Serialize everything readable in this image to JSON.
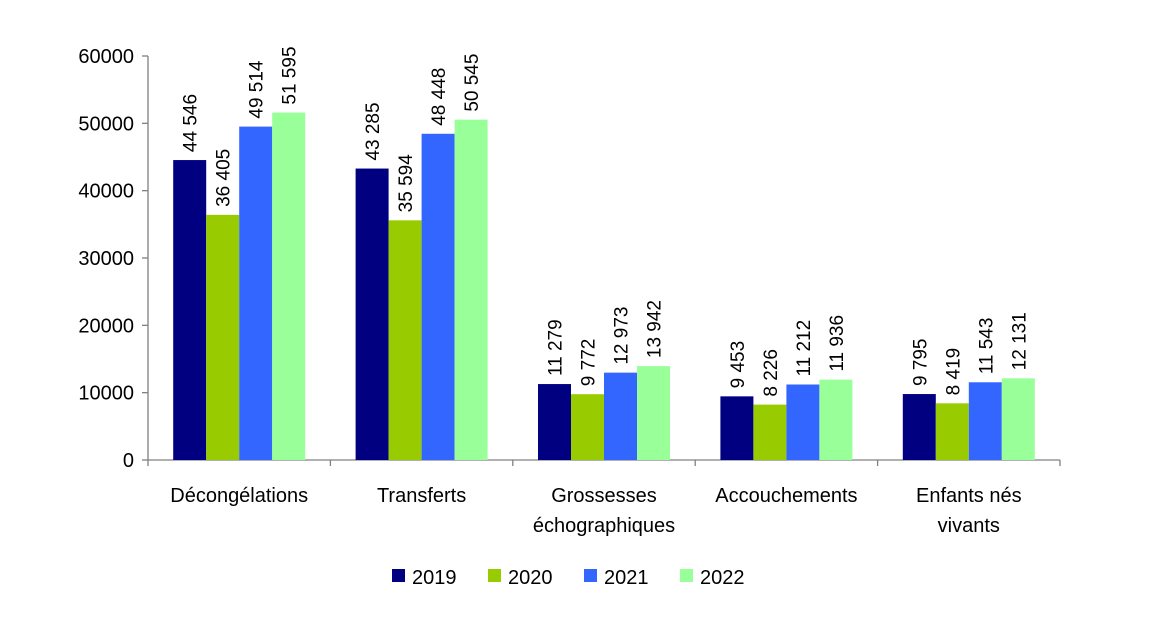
{
  "chart_data": {
    "type": "bar",
    "title": "",
    "xlabel": "",
    "ylabel": "",
    "categories": [
      [
        "Décongélations"
      ],
      [
        "Transferts"
      ],
      [
        "Grossesses",
        "échographiques"
      ],
      [
        "Accouchements"
      ],
      [
        "Enfants nés",
        "vivants"
      ]
    ],
    "series": [
      {
        "name": "2019",
        "color": "#000080",
        "values": [
          44546,
          43285,
          11279,
          9453,
          9795
        ],
        "labels": [
          "44 546",
          "43 285",
          "11 279",
          "9 453",
          "9 795"
        ]
      },
      {
        "name": "2020",
        "color": "#99CC00",
        "values": [
          36405,
          35594,
          9772,
          8226,
          8419
        ],
        "labels": [
          "36 405",
          "35 594",
          "9 772",
          "8 226",
          "8 419"
        ]
      },
      {
        "name": "2021",
        "color": "#3366FF",
        "values": [
          49514,
          48448,
          12973,
          11212,
          11543
        ],
        "labels": [
          "49 514",
          "48 448",
          "12 973",
          "11 212",
          "11 543"
        ]
      },
      {
        "name": "2022",
        "color": "#99FF99",
        "values": [
          51595,
          50545,
          13942,
          11936,
          12131
        ],
        "labels": [
          "51 595",
          "50 545",
          "13 942",
          "11 936",
          "12 131"
        ]
      }
    ],
    "ylim": [
      0,
      60000
    ],
    "yticks": [
      0,
      10000,
      20000,
      30000,
      40000,
      50000,
      60000
    ],
    "ytick_labels": [
      "0",
      "10000",
      "20000",
      "30000",
      "40000",
      "50000",
      "60000"
    ],
    "grid": false,
    "legend_position": "bottom"
  }
}
